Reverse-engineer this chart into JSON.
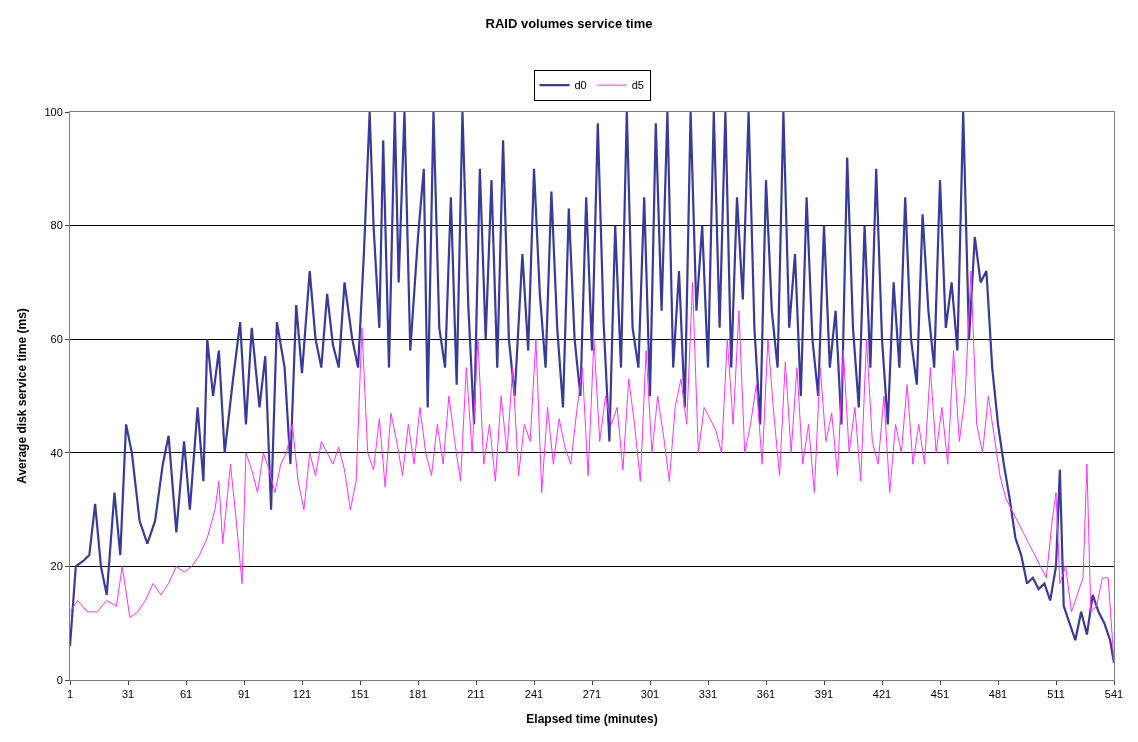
{
  "chart_data": {
    "type": "line",
    "title": "RAID volumes service time",
    "xlabel": "Elapsed time (minutes)",
    "ylabel": "Average disk service time (ms)",
    "xlim": [
      1,
      541
    ],
    "xticks": [
      1,
      31,
      61,
      91,
      121,
      151,
      181,
      211,
      241,
      271,
      301,
      331,
      361,
      391,
      421,
      451,
      481,
      511,
      541
    ],
    "ylim": [
      0,
      100
    ],
    "yticks": [
      0,
      20,
      40,
      60,
      80,
      100
    ],
    "grid": "y",
    "legend": "top",
    "marker": "none",
    "line_style": "solid",
    "series": [
      {
        "name": "d0",
        "color": "#3a3a9a",
        "x": [
          1,
          4,
          8,
          11,
          14,
          17,
          20,
          24,
          27,
          30,
          33,
          37,
          41,
          45,
          49,
          52,
          56,
          60,
          63,
          67,
          70,
          72,
          75,
          78,
          81,
          85,
          89,
          92,
          95,
          99,
          102,
          105,
          108,
          112,
          115,
          118,
          121,
          125,
          128,
          131,
          134,
          137,
          140,
          143,
          147,
          150,
          153,
          156,
          158,
          161,
          163,
          166,
          169,
          171,
          174,
          177,
          181,
          184,
          186,
          189,
          192,
          195,
          198,
          201,
          204,
          207,
          210,
          213,
          216,
          219,
          222,
          225,
          228,
          231,
          235,
          238,
          241,
          244,
          247,
          250,
          253,
          256,
          259,
          262,
          265,
          268,
          271,
          274,
          277,
          280,
          283,
          286,
          289,
          292,
          295,
          298,
          301,
          304,
          307,
          310,
          313,
          316,
          319,
          322,
          325,
          328,
          331,
          334,
          337,
          340,
          343,
          346,
          349,
          352,
          355,
          358,
          361,
          364,
          367,
          370,
          373,
          376,
          379,
          382,
          385,
          388,
          391,
          394,
          397,
          400,
          403,
          406,
          409,
          412,
          415,
          418,
          421,
          424,
          427,
          430,
          433,
          436,
          439,
          442,
          445,
          448,
          451,
          454,
          457,
          460,
          463,
          466,
          469,
          472,
          475,
          478,
          481,
          484,
          487,
          490,
          493,
          496,
          499,
          502,
          505,
          508,
          511,
          513,
          515,
          518,
          521,
          524,
          527,
          530,
          533,
          536,
          539,
          541
        ],
        "values": [
          6,
          20,
          21,
          22,
          31,
          20,
          15,
          33,
          22,
          45,
          40,
          28,
          24,
          28,
          38,
          43,
          26,
          42,
          30,
          48,
          35,
          60,
          50,
          58,
          40,
          52,
          63,
          45,
          62,
          48,
          57,
          30,
          63,
          55,
          38,
          66,
          54,
          72,
          60,
          55,
          68,
          59,
          55,
          70,
          60,
          55,
          75,
          100,
          80,
          62,
          95,
          55,
          100,
          70,
          100,
          58,
          78,
          90,
          48,
          100,
          62,
          55,
          85,
          52,
          100,
          66,
          45,
          90,
          60,
          88,
          55,
          95,
          60,
          50,
          75,
          58,
          90,
          68,
          55,
          86,
          62,
          48,
          83,
          60,
          50,
          85,
          58,
          98,
          63,
          42,
          80,
          55,
          100,
          62,
          55,
          85,
          50,
          98,
          65,
          100,
          55,
          72,
          48,
          100,
          65,
          80,
          55,
          100,
          62,
          100,
          55,
          85,
          67,
          100,
          62,
          45,
          88,
          65,
          55,
          100,
          62,
          75,
          50,
          85,
          60,
          50,
          80,
          55,
          65,
          45,
          92,
          62,
          48,
          80,
          55,
          90,
          60,
          45,
          70,
          55,
          85,
          60,
          52,
          82,
          65,
          55,
          88,
          62,
          70,
          58,
          100,
          60,
          78,
          70,
          72,
          55,
          45,
          38,
          32,
          25,
          22,
          17,
          18,
          16,
          17,
          14,
          20,
          37,
          13,
          10,
          7,
          12,
          8,
          15,
          12,
          10,
          7,
          3
        ]
      },
      {
        "name": "d5",
        "color": "#ff33ff",
        "x": [
          1,
          5,
          10,
          15,
          20,
          25,
          28,
          32,
          36,
          40,
          44,
          48,
          52,
          56,
          60,
          64,
          68,
          72,
          76,
          78,
          80,
          84,
          87,
          90,
          92,
          95,
          98,
          101,
          104,
          107,
          110,
          113,
          116,
          119,
          122,
          125,
          128,
          131,
          134,
          137,
          140,
          143,
          146,
          149,
          152,
          155,
          158,
          161,
          164,
          167,
          170,
          173,
          176,
          179,
          182,
          185,
          188,
          191,
          194,
          197,
          200,
          203,
          206,
          209,
          212,
          215,
          218,
          221,
          224,
          227,
          230,
          233,
          236,
          239,
          242,
          245,
          248,
          251,
          254,
          257,
          260,
          263,
          266,
          269,
          272,
          275,
          278,
          281,
          284,
          287,
          290,
          293,
          296,
          299,
          302,
          305,
          308,
          311,
          314,
          317,
          320,
          323,
          326,
          329,
          332,
          335,
          338,
          341,
          344,
          347,
          350,
          353,
          356,
          359,
          362,
          365,
          368,
          371,
          374,
          377,
          380,
          383,
          386,
          389,
          392,
          395,
          398,
          401,
          404,
          407,
          410,
          413,
          416,
          419,
          422,
          425,
          428,
          431,
          434,
          437,
          440,
          443,
          446,
          449,
          452,
          455,
          458,
          461,
          464,
          467,
          470,
          473,
          476,
          479,
          482,
          485,
          488,
          491,
          494,
          497,
          500,
          503,
          506,
          509,
          511,
          513,
          516,
          519,
          522,
          525,
          527,
          529,
          532,
          535,
          538,
          541
        ],
        "values": [
          12,
          14,
          12,
          12,
          14,
          13,
          20,
          11,
          12,
          14,
          17,
          15,
          17,
          20,
          19,
          20,
          22,
          25,
          30,
          35,
          24,
          38,
          28,
          17,
          40,
          37,
          33,
          40,
          37,
          33,
          38,
          40,
          45,
          35,
          30,
          40,
          36,
          42,
          40,
          38,
          41,
          37,
          30,
          35,
          62,
          40,
          37,
          46,
          34,
          47,
          42,
          36,
          45,
          38,
          48,
          40,
          36,
          45,
          38,
          50,
          42,
          35,
          55,
          40,
          60,
          38,
          45,
          35,
          50,
          40,
          55,
          36,
          45,
          42,
          60,
          33,
          48,
          38,
          46,
          41,
          38,
          47,
          55,
          36,
          60,
          42,
          50,
          45,
          48,
          37,
          53,
          45,
          35,
          58,
          40,
          50,
          43,
          35,
          48,
          53,
          45,
          70,
          40,
          48,
          46,
          44,
          40,
          60,
          45,
          65,
          40,
          45,
          52,
          38,
          60,
          47,
          36,
          56,
          40,
          55,
          38,
          45,
          33,
          55,
          42,
          47,
          36,
          58,
          40,
          48,
          35,
          60,
          42,
          38,
          50,
          33,
          45,
          40,
          52,
          38,
          45,
          38,
          55,
          40,
          48,
          38,
          58,
          42,
          50,
          72,
          45,
          40,
          50,
          43,
          36,
          32,
          30,
          28,
          26,
          24,
          22,
          20,
          18,
          28,
          33,
          17,
          20,
          12,
          15,
          18,
          38,
          12,
          13,
          18,
          18,
          3
        ]
      }
    ]
  }
}
